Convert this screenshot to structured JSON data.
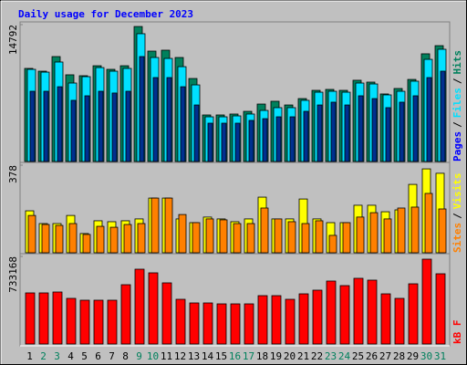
{
  "chart_data": [
    {
      "type": "bar",
      "title": "Daily usage for December 2023",
      "ylim": [
        0,
        14792
      ],
      "yticks": [
        14792
      ],
      "legend_separator": "/",
      "series": [
        {
          "name": "Hits",
          "color": "#00805c",
          "values": [
            10060,
            9760,
            11340,
            9370,
            9270,
            10350,
            9960,
            10350,
            14590,
            11930,
            12030,
            11240,
            8970,
            5030,
            5030,
            5130,
            5420,
            6210,
            6510,
            6110,
            6800,
            7690,
            7790,
            7690,
            8780,
            8580,
            7300,
            7890,
            8870,
            11640,
            12520
          ]
        },
        {
          "name": "Files",
          "color": "#00e0ff",
          "values": [
            9960,
            9660,
            10750,
            8480,
            9170,
            10150,
            9760,
            10060,
            13810,
            11240,
            11140,
            10250,
            8280,
            4830,
            4830,
            4930,
            5130,
            5520,
            5820,
            5820,
            6610,
            7490,
            7590,
            7490,
            8480,
            8380,
            7200,
            7590,
            8680,
            11040,
            12130
          ]
        },
        {
          "name": "Pages",
          "color": "#00308f",
          "values": [
            7590,
            7590,
            8080,
            6610,
            7100,
            7590,
            7400,
            7590,
            11340,
            9070,
            9070,
            8080,
            6110,
            4140,
            4140,
            4140,
            4440,
            4630,
            4830,
            4830,
            5420,
            6110,
            6410,
            6110,
            7100,
            6800,
            5820,
            6410,
            7100,
            9070,
            9760
          ]
        }
      ]
    },
    {
      "type": "bar",
      "ylim": [
        0,
        378
      ],
      "yticks": [
        378
      ],
      "legend_separator": "/",
      "series": [
        {
          "name": "Visits",
          "color": "#ffff00",
          "values": [
            181,
            126,
            126,
            161,
            83,
            138,
            134,
            138,
            146,
            236,
            236,
            146,
            130,
            154,
            146,
            134,
            146,
            240,
            146,
            146,
            232,
            146,
            130,
            130,
            205,
            205,
            177,
            185,
            295,
            362,
            343
          ]
        },
        {
          "name": "Sites",
          "color": "#ff8000",
          "values": [
            161,
            122,
            118,
            126,
            79,
            114,
            110,
            122,
            126,
            236,
            236,
            165,
            130,
            146,
            142,
            126,
            126,
            193,
            146,
            134,
            126,
            138,
            75,
            130,
            154,
            173,
            146,
            193,
            197,
            256,
            189
          ]
        }
      ]
    },
    {
      "type": "bar",
      "ylim": [
        0,
        733168
      ],
      "yticks": [
        733168
      ],
      "categories": [
        "1",
        "2",
        "3",
        "4",
        "5",
        "6",
        "7",
        "8",
        "9",
        "10",
        "11",
        "12",
        "13",
        "14",
        "15",
        "16",
        "17",
        "18",
        "19",
        "20",
        "21",
        "22",
        "23",
        "24",
        "25",
        "26",
        "27",
        "28",
        "29",
        "30",
        "31"
      ],
      "category_colors": [
        "#000000",
        "#00805c",
        "#00805c",
        "#000000",
        "#000000",
        "#000000",
        "#000000",
        "#000000",
        "#00805c",
        "#00805c",
        "#000000",
        "#000000",
        "#000000",
        "#000000",
        "#000000",
        "#00805c",
        "#00805c",
        "#000000",
        "#000000",
        "#000000",
        "#000000",
        "#000000",
        "#00805c",
        "#00805c",
        "#000000",
        "#000000",
        "#000000",
        "#000000",
        "#000000",
        "#00805c",
        "#00805c"
      ],
      "series": [
        {
          "name": "kB F",
          "color": "#ff0000",
          "values": [
            427700,
            427700,
            435300,
            381900,
            366600,
            366600,
            366600,
            496400,
            626200,
            595700,
            511700,
            374200,
            343700,
            343700,
            336000,
            336000,
            336000,
            404800,
            404800,
            374200,
            420000,
            450600,
            527000,
            488800,
            549900,
            534600,
            420000,
            381900,
            504000,
            710200,
            588000
          ]
        }
      ]
    }
  ]
}
